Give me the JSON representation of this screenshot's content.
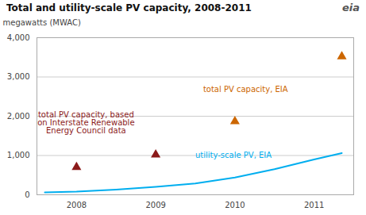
{
  "chart_data": {
    "type": "line",
    "title": "Total and utility-scale PV capacity, 2008-2011",
    "y_label": "megawatts (MWAC)",
    "logo": "eia",
    "xlim": [
      2007.5,
      2011.5
    ],
    "xticks": [
      2008,
      2009,
      2010,
      2011
    ],
    "ylim": [
      0,
      4000
    ],
    "yticks": [
      0,
      {
        "value": 1000,
        "label": "1,000"
      },
      {
        "value": 2000,
        "label": "2,000"
      },
      {
        "value": 3000,
        "label": "3,000"
      },
      {
        "value": 4000,
        "label": "4,000"
      }
    ],
    "grid": true,
    "series": [
      {
        "type": "line",
        "color": "#00aeef",
        "x": [
          2007.6,
          2008.0,
          2008.5,
          2009.0,
          2009.5,
          2010.0,
          2010.5,
          2011.0,
          2011.35
        ],
        "values": [
          60,
          80,
          130,
          200,
          290,
          440,
          650,
          900,
          1060
        ],
        "annotation": "utility-scale PV, EIA"
      },
      {
        "type": "scatter",
        "marker": "triangle",
        "color": "#8b1a1a",
        "x": [
          2008.0,
          2009.0
        ],
        "values": [
          700,
          1020
        ],
        "annotation": "total PV capacity, based\non Interstate Renewable\nEnergy Council data"
      },
      {
        "type": "scatter",
        "marker": "triangle",
        "color": "#cc6600",
        "x": [
          2010.0,
          2011.35
        ],
        "values": [
          1870,
          3520
        ],
        "annotation": "total PV capacity, EIA"
      }
    ]
  }
}
